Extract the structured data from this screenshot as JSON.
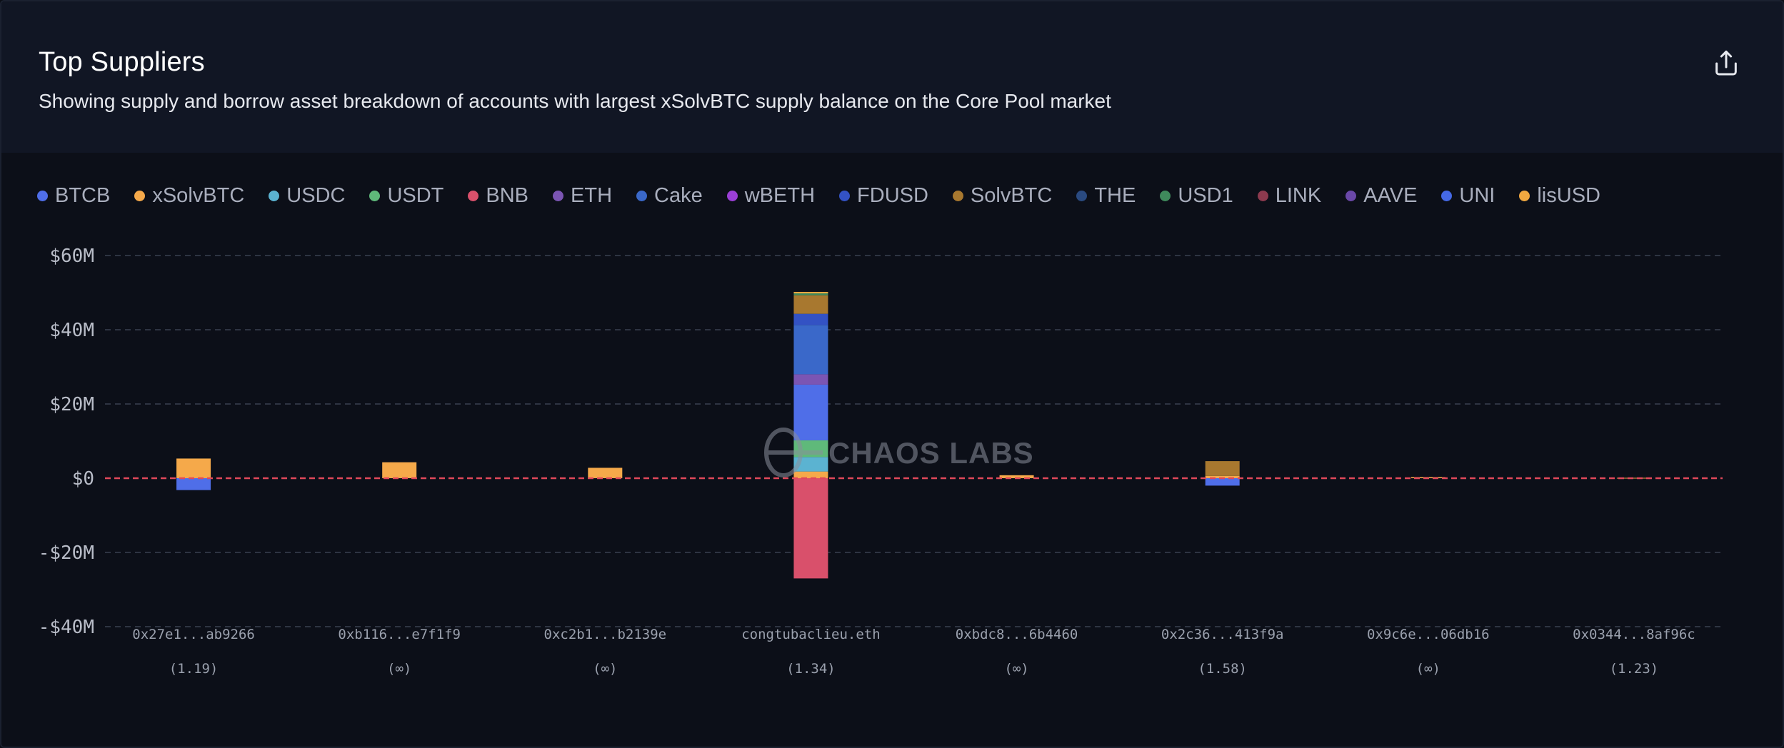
{
  "header": {
    "title": "Top Suppliers",
    "subtitle": "Showing supply and borrow asset breakdown of accounts with largest xSolvBTC supply balance on the Core Pool market",
    "share_icon": "share-icon"
  },
  "watermark": "CHAOS LABS",
  "legend": [
    {
      "name": "BTCB",
      "color": "#4f6ee8"
    },
    {
      "name": "xSolvBTC",
      "color": "#f5a94a"
    },
    {
      "name": "USDC",
      "color": "#5bb3d1"
    },
    {
      "name": "USDT",
      "color": "#5fb97a"
    },
    {
      "name": "BNB",
      "color": "#d9506b"
    },
    {
      "name": "ETH",
      "color": "#7b55b3"
    },
    {
      "name": "Cake",
      "color": "#3a68c9"
    },
    {
      "name": "wBETH",
      "color": "#9b3fd6"
    },
    {
      "name": "FDUSD",
      "color": "#3352c4"
    },
    {
      "name": "SolvBTC",
      "color": "#a8782f"
    },
    {
      "name": "THE",
      "color": "#2a4a80"
    },
    {
      "name": "USD1",
      "color": "#3f8a5c"
    },
    {
      "name": "LINK",
      "color": "#8c3a4e"
    },
    {
      "name": "AAVE",
      "color": "#6a48a8"
    },
    {
      "name": "UNI",
      "color": "#4569e6"
    },
    {
      "name": "lisUSD",
      "color": "#f0a840"
    }
  ],
  "chart_data": {
    "type": "bar",
    "stacked": true,
    "ylim": [
      -40,
      60
    ],
    "yticks": [
      60,
      40,
      20,
      0,
      -20,
      -40
    ],
    "ytick_labels": [
      "$60M",
      "$40M",
      "$20M",
      "$0",
      "-$20M",
      "-$40M"
    ],
    "grid": true,
    "legend_position": "top-left",
    "categories": [
      {
        "label": "0x27e1...ab9266",
        "sublabel": "(1.19)"
      },
      {
        "label": "0xb116...e7f1f9",
        "sublabel": "(∞)"
      },
      {
        "label": "0xc2b1...b2139e",
        "sublabel": "(∞)"
      },
      {
        "label": "congtubaclieu.eth",
        "sublabel": "(1.34)"
      },
      {
        "label": "0xbdc8...6b4460",
        "sublabel": "(∞)"
      },
      {
        "label": "0x2c36...413f9a",
        "sublabel": "(1.58)"
      },
      {
        "label": "0x9c6e...06db16",
        "sublabel": "(∞)"
      },
      {
        "label": "0x0344...8af96c",
        "sublabel": "(1.23)"
      }
    ],
    "series": [
      {
        "name": "xSolvBTC",
        "color": "#f5a94a",
        "values": [
          5.3,
          4.3,
          2.8,
          1.8,
          0.8,
          0.6,
          0.3,
          0.1
        ]
      },
      {
        "name": "USDC",
        "color": "#5bb3d1",
        "values": [
          0,
          0,
          0,
          3.9,
          0,
          0,
          0,
          0
        ]
      },
      {
        "name": "USDT",
        "color": "#5fb97a",
        "values": [
          0,
          0,
          0,
          4.5,
          0,
          0,
          0,
          0
        ]
      },
      {
        "name": "BTCB",
        "color": "#4f6ee8",
        "values": [
          -3.2,
          0,
          0,
          15.0,
          0,
          -2.0,
          0,
          0
        ]
      },
      {
        "name": "ETH",
        "color": "#7b55b3",
        "values": [
          0,
          0,
          0,
          2.8,
          0,
          0,
          0,
          0
        ]
      },
      {
        "name": "Cake",
        "color": "#3a68c9",
        "values": [
          0,
          0,
          0,
          13.3,
          0,
          0,
          0,
          0
        ]
      },
      {
        "name": "FDUSD",
        "color": "#3352c4",
        "values": [
          0,
          0,
          0,
          3.0,
          0,
          0,
          0,
          0
        ]
      },
      {
        "name": "SolvBTC",
        "color": "#a8782f",
        "values": [
          0,
          0,
          0,
          5.0,
          0,
          4.0,
          0,
          0
        ]
      },
      {
        "name": "USD1",
        "color": "#3f8a5c",
        "values": [
          0,
          0,
          0,
          0.5,
          0,
          0,
          0,
          0
        ]
      },
      {
        "name": "lisUSD",
        "color": "#f0a840",
        "values": [
          0,
          0,
          0,
          0.4,
          0,
          0,
          0,
          0
        ]
      },
      {
        "name": "BNB",
        "color": "#d9506b",
        "values": [
          0,
          0,
          0,
          -27.0,
          0,
          0,
          0,
          0
        ]
      }
    ],
    "zero_line_color": "#e0485a"
  }
}
